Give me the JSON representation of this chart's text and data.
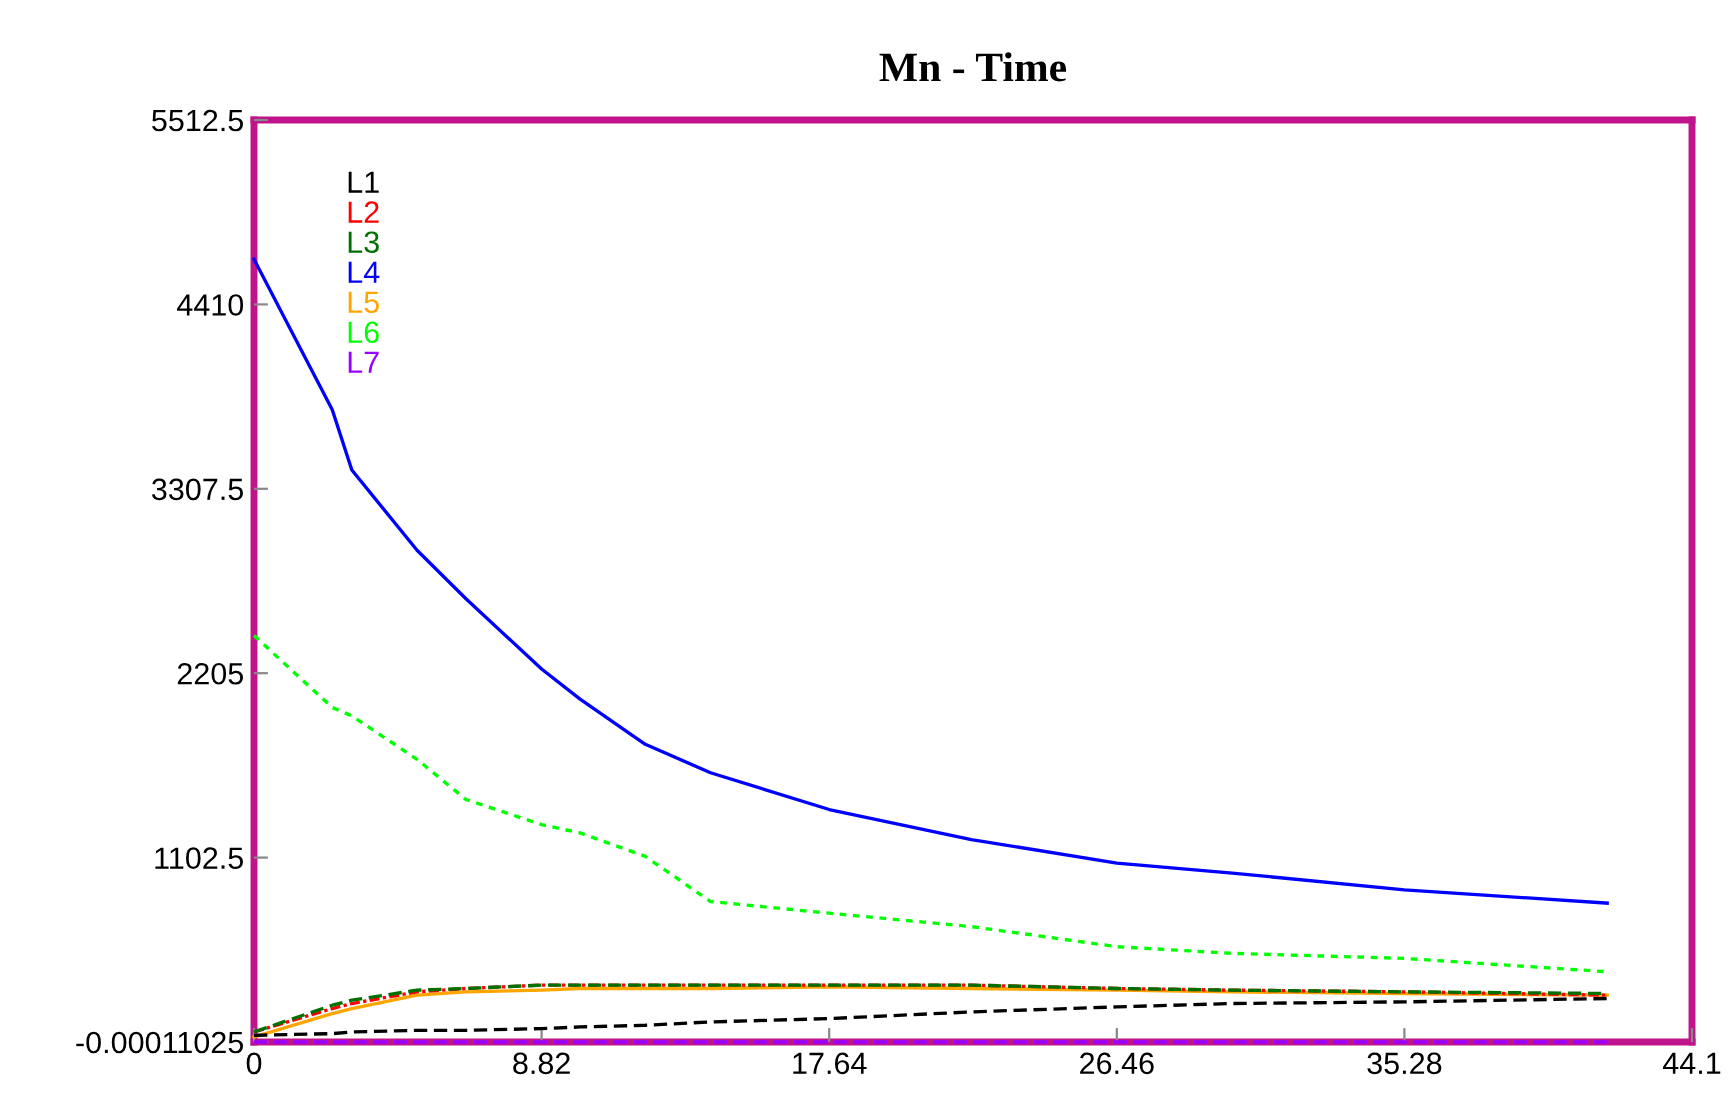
{
  "chart_data": {
    "type": "line",
    "title": "Mn - Time",
    "x": [
      0,
      2.4,
      3,
      5,
      6.5,
      8.82,
      10,
      12,
      14,
      17.64,
      22,
      26.46,
      30,
      35.28,
      41.5
    ],
    "series": [
      {
        "name": "L1",
        "color": "#000000",
        "line_style": "dashed",
        "values": [
          40,
          50,
          60,
          70,
          70,
          80,
          90,
          100,
          120,
          140,
          180,
          210,
          230,
          240,
          260
        ]
      },
      {
        "name": "L2",
        "color": "#ff0000",
        "line_style": "dashdot",
        "values": [
          60,
          200,
          230,
          300,
          320,
          340,
          340,
          340,
          340,
          340,
          340,
          320,
          310,
          300,
          280
        ]
      },
      {
        "name": "L3",
        "color": "#007000",
        "line_style": "dashed",
        "values": [
          60,
          220,
          250,
          310,
          320,
          340,
          340,
          340,
          340,
          340,
          340,
          320,
          310,
          300,
          290
        ]
      },
      {
        "name": "L4",
        "color": "#0000ff",
        "line_style": "solid",
        "values": [
          4680,
          3780,
          3420,
          2940,
          2650,
          2230,
          2050,
          1780,
          1610,
          1390,
          1210,
          1070,
          1010,
          910,
          830
        ]
      },
      {
        "name": "L5",
        "color": "#ffa500",
        "line_style": "solid",
        "values": [
          30,
          170,
          200,
          280,
          300,
          310,
          320,
          320,
          320,
          330,
          320,
          310,
          300,
          290,
          280
        ]
      },
      {
        "name": "L6",
        "color": "#00ff00",
        "line_style": "dotted",
        "values": [
          2430,
          2000,
          1950,
          1690,
          1450,
          1300,
          1250,
          1110,
          840,
          770,
          690,
          570,
          530,
          500,
          420
        ]
      },
      {
        "name": "L7",
        "color": "#9900ff",
        "line_style": "dashed",
        "values": [
          0,
          0,
          0,
          0,
          0,
          0,
          0,
          0,
          0,
          0,
          0,
          0,
          0,
          0,
          0
        ]
      }
    ],
    "xlim": [
      0,
      44.1
    ],
    "xticks": [
      0,
      8.82,
      17.64,
      26.46,
      35.28,
      44.1
    ],
    "ylim": [
      -0.00011025,
      5512.5
    ],
    "yticks": [
      -0.00011025,
      1102.5,
      2205,
      3307.5,
      4410,
      5512.5
    ],
    "grid": false,
    "legend": "top left",
    "marker": "none"
  }
}
